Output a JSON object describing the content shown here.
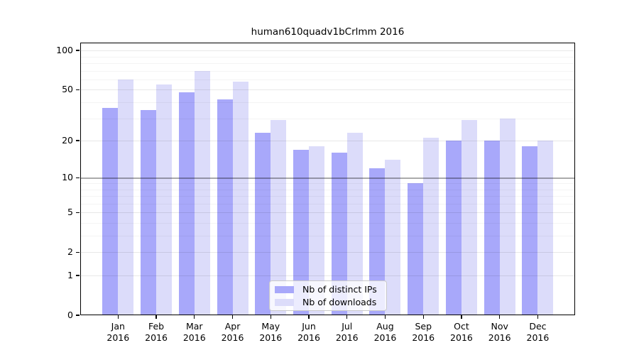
{
  "title": "human610quadv1bCrlmm 2016",
  "chart_data": {
    "type": "bar",
    "title": "human610quadv1bCrlmm 2016",
    "scale": "log10(1+x)",
    "categories": [
      "Jan",
      "Feb",
      "Mar",
      "Apr",
      "May",
      "Jun",
      "Jul",
      "Aug",
      "Sep",
      "Oct",
      "Nov",
      "Dec"
    ],
    "year": "2016",
    "series": [
      {
        "name": "Nb of distinct IPs",
        "color": "#a8a8fa",
        "values": [
          36,
          35,
          48,
          42,
          23,
          17,
          16,
          12,
          9,
          20,
          20,
          18
        ]
      },
      {
        "name": "Nb of downloads",
        "color": "#dcdcfa",
        "values": [
          60,
          55,
          70,
          58,
          29,
          18,
          23,
          14,
          21,
          29,
          30,
          20
        ]
      }
    ],
    "xlabel": "",
    "ylabel": "",
    "ylim": [
      0,
      115
    ],
    "y_major_ticks": [
      0,
      1,
      2,
      5,
      10,
      20,
      50,
      100
    ],
    "y_minor_gridlines": [
      3,
      4,
      6,
      7,
      8,
      9,
      30,
      40,
      60,
      70,
      80,
      90
    ],
    "emphasized_gridline": 10,
    "grid": true,
    "legend_position": "bottom-center"
  },
  "colors": {
    "bar_dark": "#a8a8fa",
    "bar_light": "#dcdcfa",
    "grid_major": "rgba(0,0,0,0.09)",
    "grid_minor": "rgba(0,0,0,0.045)",
    "grid_emphasis": "rgba(0,0,0,0.33)",
    "axis": "#000000"
  }
}
